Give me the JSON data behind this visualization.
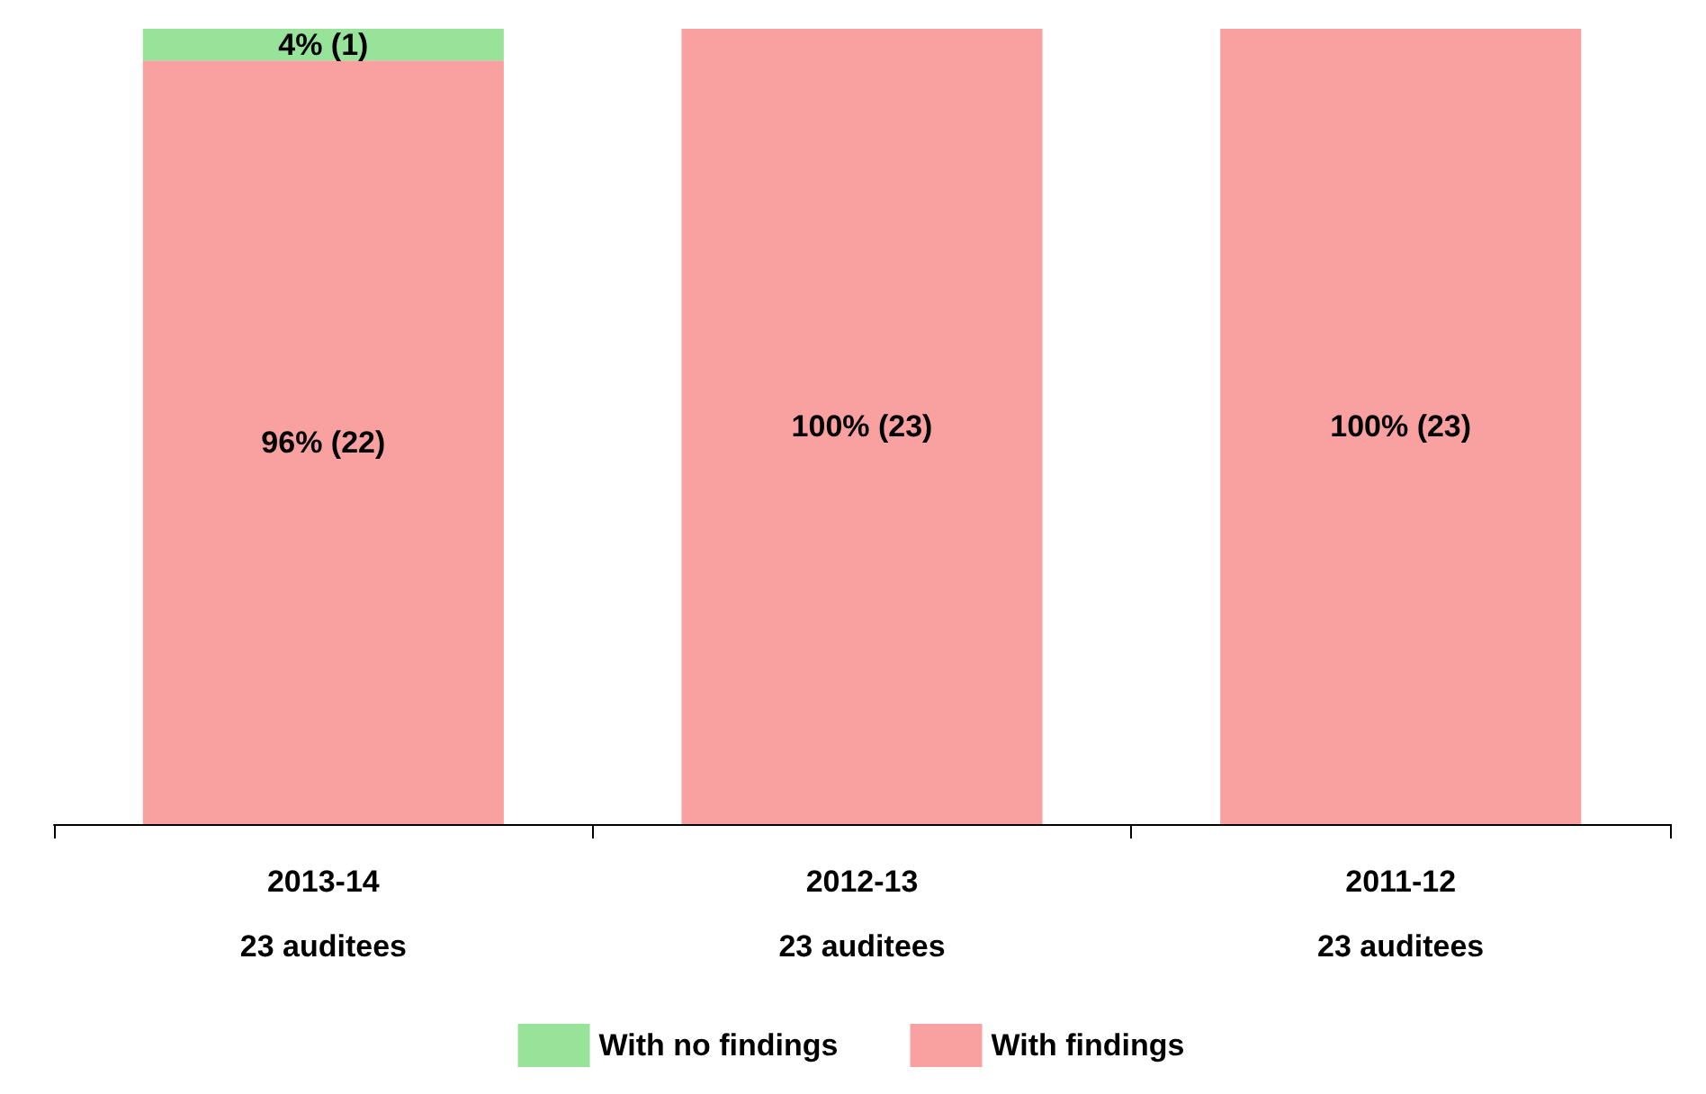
{
  "chart_data": {
    "type": "bar",
    "stacked": true,
    "categories": [
      "2013-14\n23 auditees",
      "2012-13\n23 auditees",
      "2011-12\n23 auditees"
    ],
    "series": [
      {
        "name": "With findings",
        "color": "#f8a1a0",
        "values": [
          96,
          100,
          100
        ],
        "value_labels": [
          "96% (22)",
          "100% (23)",
          "100% (23)"
        ]
      },
      {
        "name": "With no findings",
        "color": "#98e39a",
        "values": [
          4,
          0,
          0
        ],
        "value_labels": [
          "4% (1)",
          null,
          null
        ]
      }
    ],
    "ylim": [
      0,
      100
    ],
    "legend": "bottom"
  }
}
